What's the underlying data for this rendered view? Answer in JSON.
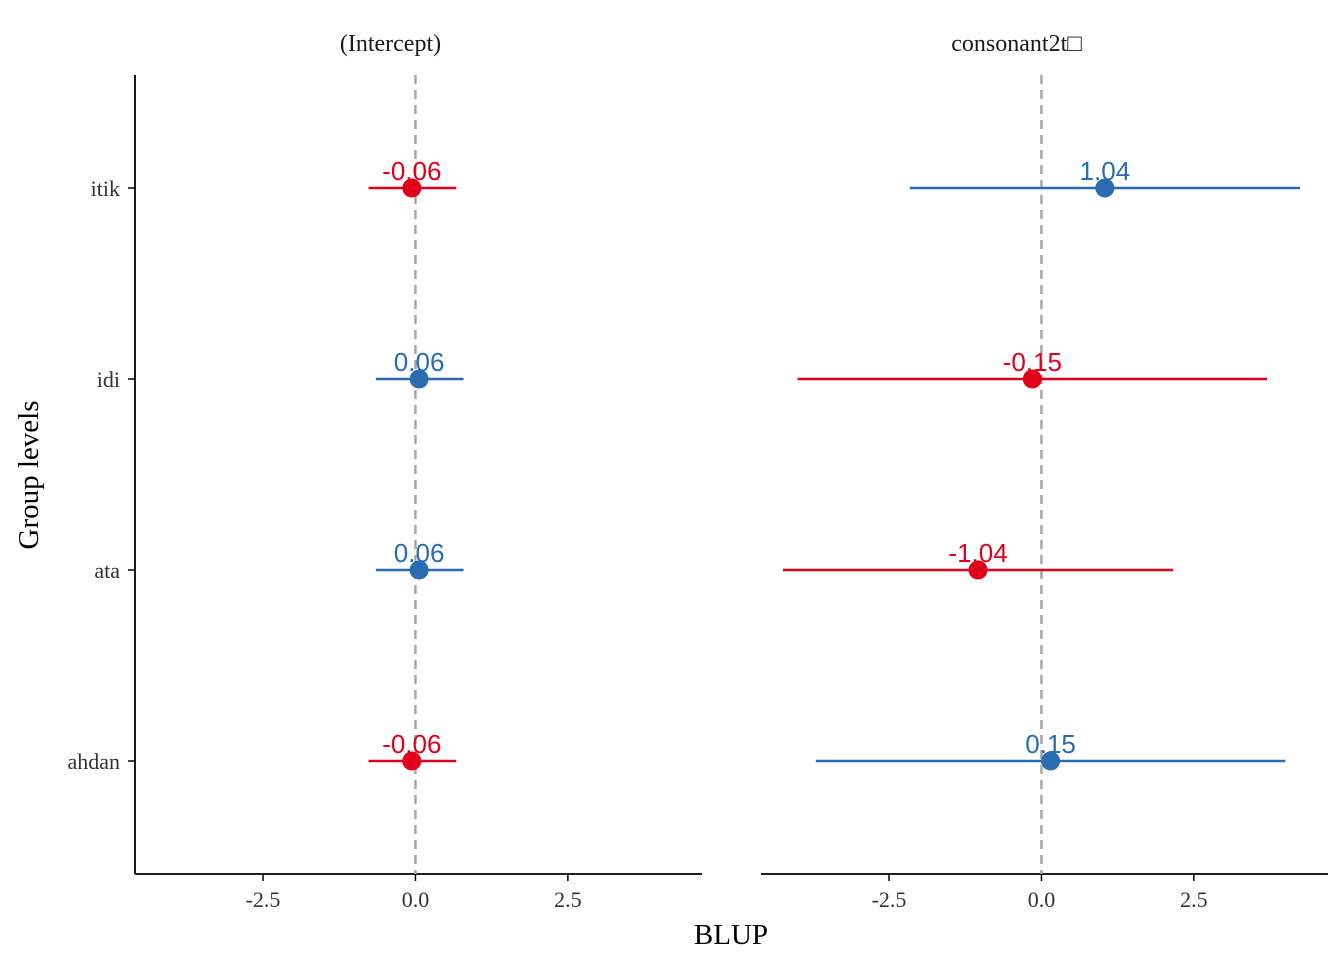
{
  "chart_data": {
    "type": "forest",
    "xlabel": "BLUP",
    "ylabel": "Group levels",
    "xlim": [
      -4.6,
      4.7
    ],
    "xticks": [
      -2.5,
      0.0,
      2.5
    ],
    "xtick_labels": [
      "-2.5",
      "0.0",
      "2.5"
    ],
    "reference_line": 0,
    "levels": [
      "itik",
      "idi",
      "ata",
      "ahdan"
    ],
    "colors": {
      "positive": "#2b6cb0",
      "negative": "#e0001b",
      "reference": "#a6a6a6"
    },
    "panels": [
      {
        "title": "(Intercept)",
        "points": [
          {
            "level": "itik",
            "value": -0.06,
            "lower": -0.77,
            "upper": 0.67,
            "label": "-0.06",
            "sign": "negative"
          },
          {
            "level": "idi",
            "value": 0.06,
            "lower": -0.65,
            "upper": 0.79,
            "label": "0.06",
            "sign": "positive"
          },
          {
            "level": "ata",
            "value": 0.06,
            "lower": -0.65,
            "upper": 0.79,
            "label": "0.06",
            "sign": "positive"
          },
          {
            "level": "ahdan",
            "value": -0.06,
            "lower": -0.77,
            "upper": 0.67,
            "label": "-0.06",
            "sign": "negative"
          }
        ]
      },
      {
        "title": "consonant2t□",
        "points": [
          {
            "level": "itik",
            "value": 1.04,
            "lower": -2.16,
            "upper": 4.24,
            "label": "1.04",
            "sign": "positive"
          },
          {
            "level": "idi",
            "value": -0.15,
            "lower": -4.0,
            "upper": 3.7,
            "label": "-0.15",
            "sign": "negative"
          },
          {
            "level": "ata",
            "value": -1.04,
            "lower": -4.24,
            "upper": 2.16,
            "label": "-1.04",
            "sign": "negative"
          },
          {
            "level": "ahdan",
            "value": 0.15,
            "lower": -3.7,
            "upper": 4.0,
            "label": "0.15",
            "sign": "positive"
          }
        ]
      }
    ]
  }
}
